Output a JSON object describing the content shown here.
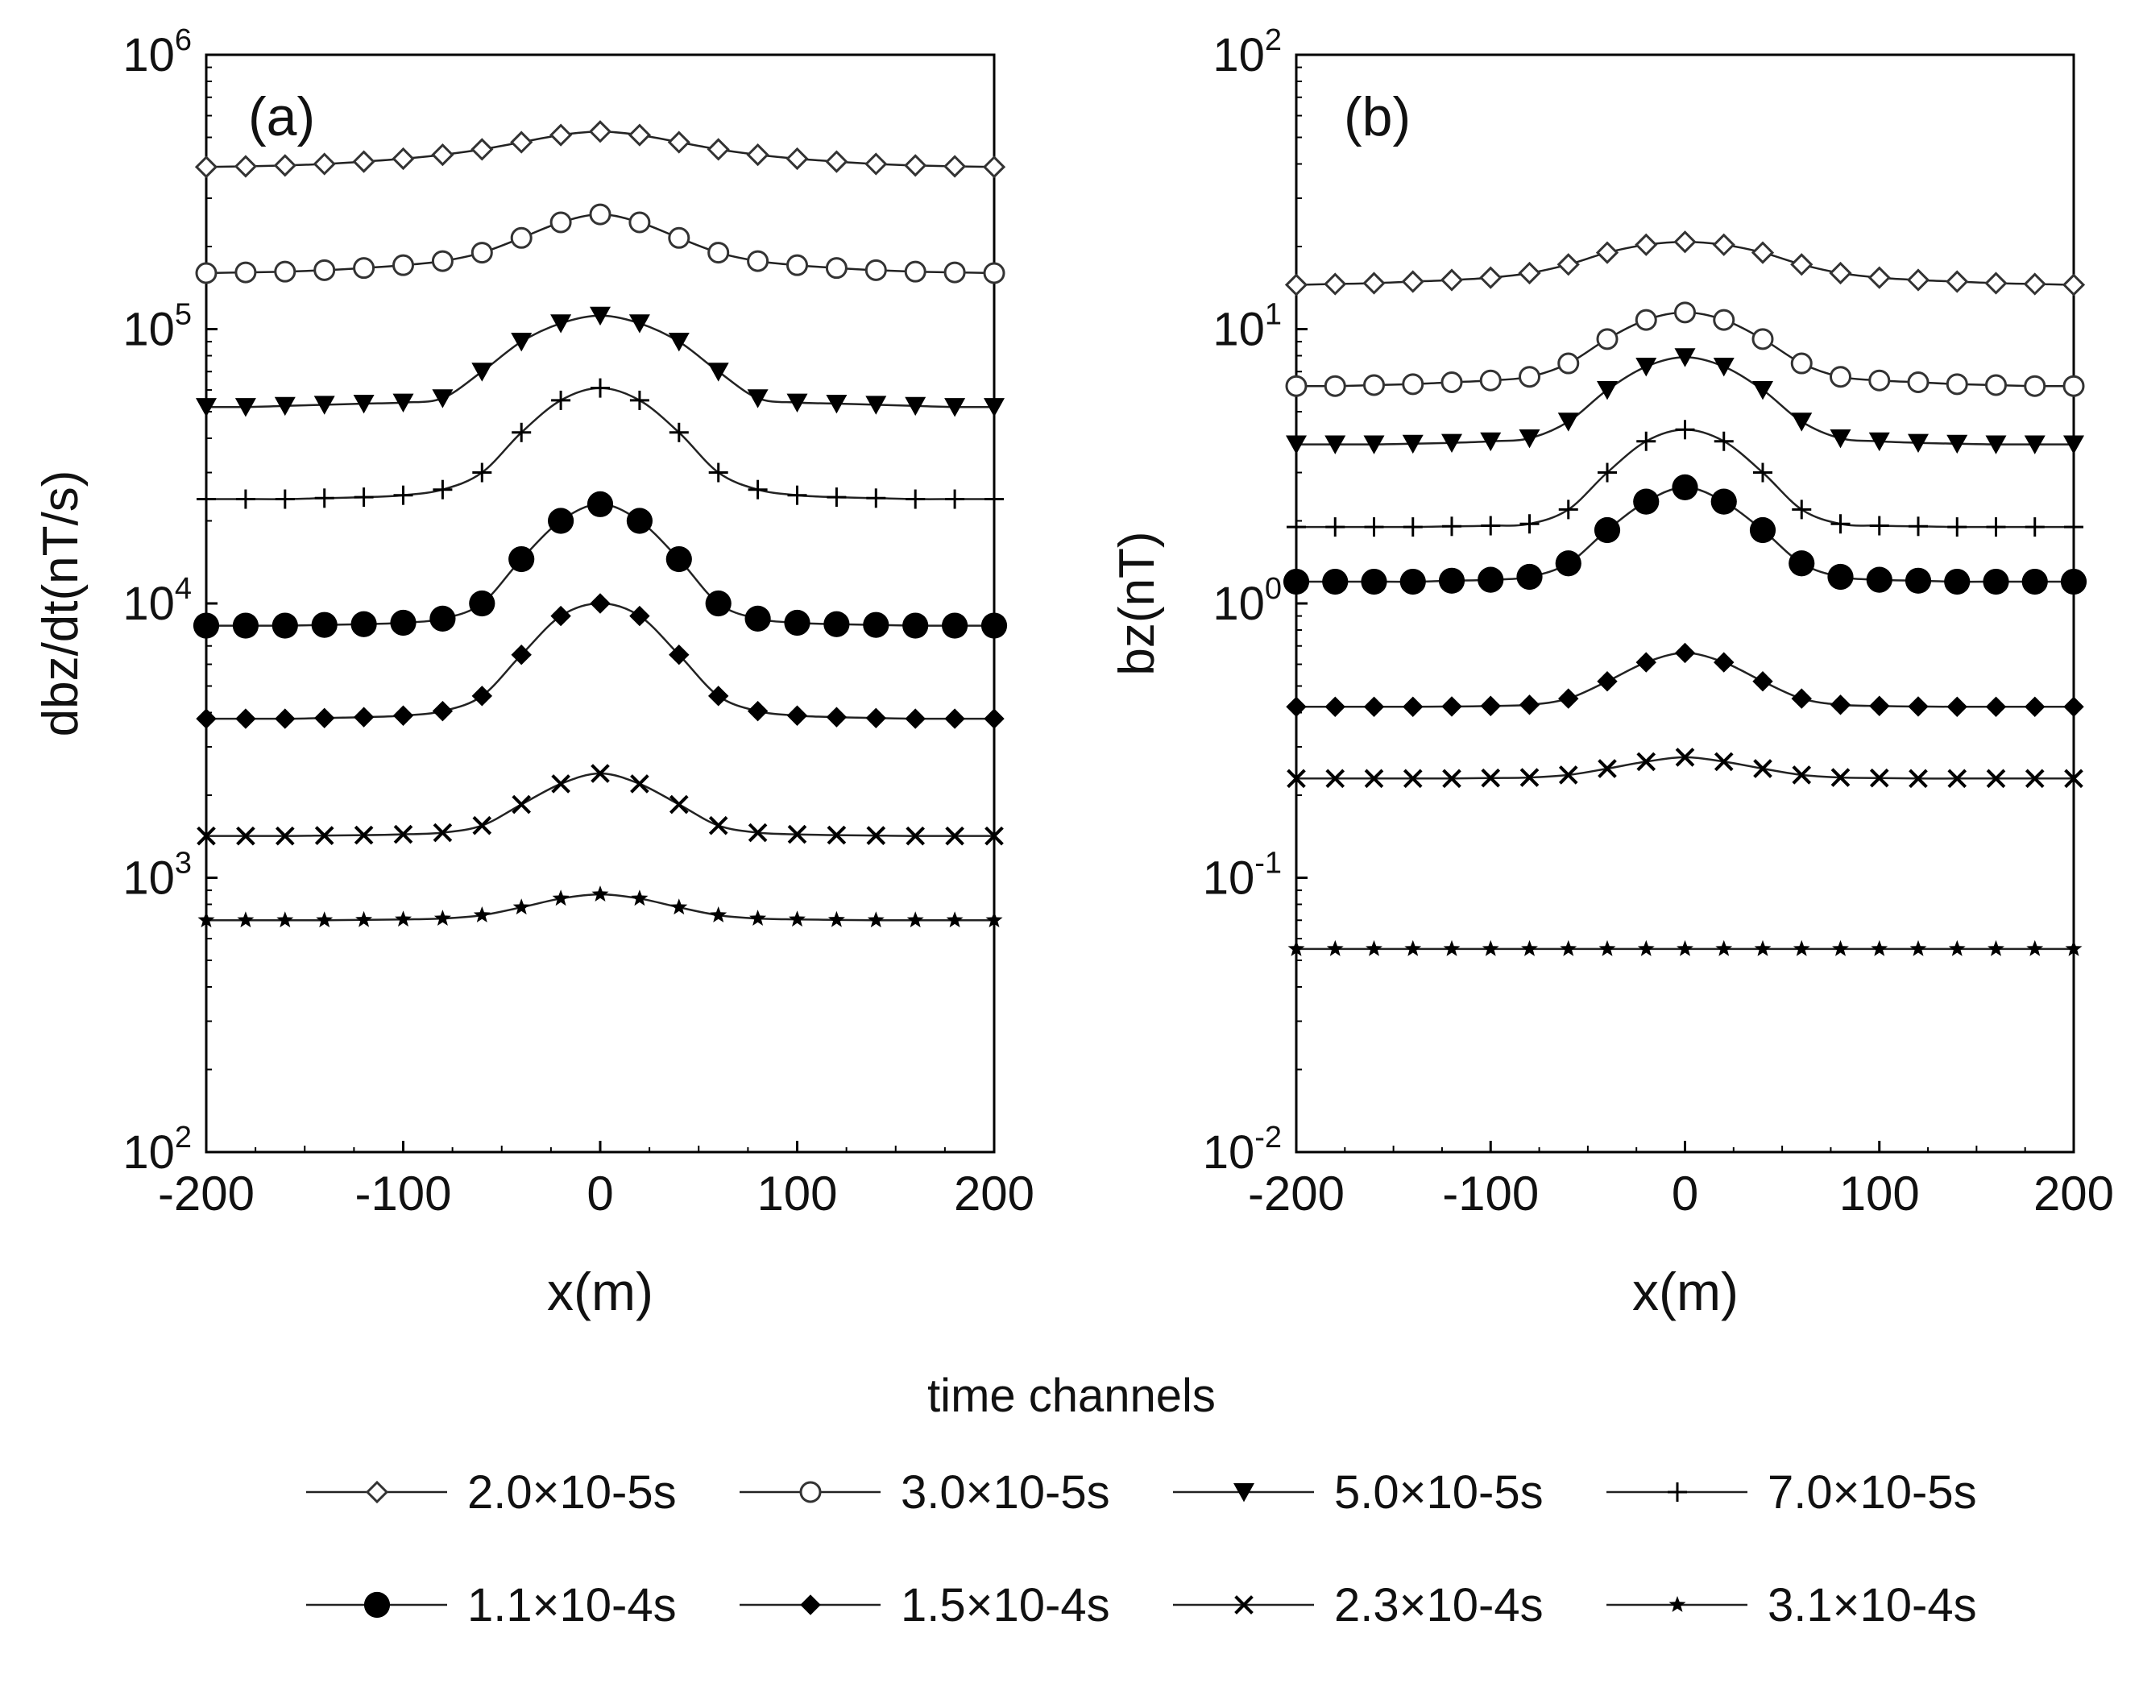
{
  "legend": {
    "title": "time channels",
    "placement": "bottom",
    "entries": [
      {
        "label": "2.0×10-5s",
        "marker": "diamond-open"
      },
      {
        "label": "3.0×10-5s",
        "marker": "circle-open"
      },
      {
        "label": "5.0×10-5s",
        "marker": "triangle-down-filled"
      },
      {
        "label": "7.0×10-5s",
        "marker": "plus"
      },
      {
        "label": "1.1×10-4s",
        "marker": "circle-filled"
      },
      {
        "label": "1.5×10-4s",
        "marker": "diamond-filled"
      },
      {
        "label": "2.3×10-4s",
        "marker": "cross"
      },
      {
        "label": "3.1×10-4s",
        "marker": "star"
      }
    ]
  },
  "chart_data": [
    {
      "type": "line",
      "panel_label": "(a)",
      "xlabel": "x(m)",
      "ylabel": "dbz/dt(nT/s)",
      "yscale": "log",
      "xlim": [
        -200,
        200
      ],
      "ylim": [
        100,
        1000000
      ],
      "xticks": [
        -200,
        -100,
        0,
        100,
        200
      ],
      "yticks": [
        {
          "base": "10",
          "exp": "2",
          "value": 100
        },
        {
          "base": "10",
          "exp": "3",
          "value": 1000
        },
        {
          "base": "10",
          "exp": "4",
          "value": 10000
        },
        {
          "base": "10",
          "exp": "5",
          "value": 100000
        },
        {
          "base": "10",
          "exp": "6",
          "value": 1000000
        }
      ],
      "grid": false,
      "x": [
        -200,
        -180,
        -160,
        -140,
        -120,
        -100,
        -80,
        -60,
        -40,
        -20,
        0,
        20,
        40,
        60,
        80,
        100,
        120,
        140,
        160,
        180,
        200
      ],
      "series": [
        {
          "name": "2.0×10-5s",
          "marker": "diamond-open",
          "values": [
            390000,
            392000,
            395000,
            400000,
            408000,
            418000,
            432000,
            452000,
            480000,
            510000,
            525000,
            510000,
            480000,
            452000,
            432000,
            418000,
            408000,
            400000,
            395000,
            392000,
            390000
          ]
        },
        {
          "name": "3.0×10-5s",
          "marker": "circle-open",
          "values": [
            160000,
            161000,
            162000,
            164000,
            167000,
            171000,
            177000,
            190000,
            215000,
            245000,
            262000,
            245000,
            215000,
            190000,
            177000,
            171000,
            167000,
            164000,
            162000,
            161000,
            160000
          ]
        },
        {
          "name": "5.0×10-5s",
          "marker": "triangle-down-filled",
          "values": [
            52000,
            52000,
            52500,
            53000,
            53500,
            54000,
            56000,
            70000,
            90000,
            105000,
            112000,
            105000,
            90000,
            70000,
            56000,
            54000,
            53500,
            53000,
            52500,
            52000,
            52000
          ]
        },
        {
          "name": "7.0×10-5s",
          "marker": "plus",
          "values": [
            24000,
            24000,
            24000,
            24200,
            24400,
            24800,
            26000,
            30000,
            42000,
            55000,
            61000,
            55000,
            42000,
            30000,
            26000,
            24800,
            24400,
            24200,
            24000,
            24000,
            24000
          ]
        },
        {
          "name": "1.1×10-4s",
          "marker": "circle-filled",
          "values": [
            8300,
            8300,
            8300,
            8350,
            8400,
            8500,
            8800,
            10000,
            14500,
            20000,
            23000,
            20000,
            14500,
            10000,
            8800,
            8500,
            8400,
            8350,
            8300,
            8300,
            8300
          ]
        },
        {
          "name": "1.5×10-4s",
          "marker": "diamond-filled",
          "values": [
            3800,
            3800,
            3800,
            3820,
            3850,
            3900,
            4050,
            4600,
            6500,
            9000,
            10000,
            9000,
            6500,
            4600,
            4050,
            3900,
            3850,
            3820,
            3800,
            3800,
            3800
          ]
        },
        {
          "name": "2.3×10-4s",
          "marker": "cross",
          "values": [
            1420,
            1420,
            1420,
            1425,
            1430,
            1440,
            1460,
            1550,
            1850,
            2200,
            2400,
            2200,
            1850,
            1550,
            1460,
            1440,
            1430,
            1425,
            1420,
            1420,
            1420
          ]
        },
        {
          "name": "3.1×10-4s",
          "marker": "star",
          "values": [
            700,
            700,
            700,
            700,
            702,
            705,
            710,
            730,
            780,
            840,
            870,
            840,
            780,
            730,
            710,
            705,
            702,
            700,
            700,
            700,
            700
          ]
        }
      ]
    },
    {
      "type": "line",
      "panel_label": "(b)",
      "xlabel": "x(m)",
      "ylabel": "bz(nT)",
      "yscale": "log",
      "xlim": [
        -200,
        200
      ],
      "ylim": [
        0.01,
        100
      ],
      "xticks": [
        -200,
        -100,
        0,
        100,
        200
      ],
      "yticks": [
        {
          "base": "10",
          "exp": "-2",
          "value": 0.01
        },
        {
          "base": "10",
          "exp": "-1",
          "value": 0.1
        },
        {
          "base": "10",
          "exp": "0",
          "value": 1
        },
        {
          "base": "10",
          "exp": "1",
          "value": 10
        },
        {
          "base": "10",
          "exp": "2",
          "value": 100
        }
      ],
      "grid": false,
      "x": [
        -200,
        -180,
        -160,
        -140,
        -120,
        -100,
        -80,
        -60,
        -40,
        -20,
        0,
        20,
        40,
        60,
        80,
        100,
        120,
        140,
        160,
        180,
        200
      ],
      "series": [
        {
          "name": "2.0×10-5s",
          "marker": "diamond-open",
          "values": [
            14.5,
            14.6,
            14.7,
            14.9,
            15.1,
            15.4,
            16.0,
            17.2,
            19.0,
            20.3,
            20.8,
            20.3,
            19.0,
            17.2,
            16.0,
            15.4,
            15.1,
            14.9,
            14.7,
            14.6,
            14.5
          ]
        },
        {
          "name": "3.0×10-5s",
          "marker": "circle-open",
          "values": [
            6.2,
            6.2,
            6.25,
            6.3,
            6.4,
            6.5,
            6.7,
            7.5,
            9.2,
            10.8,
            11.5,
            10.8,
            9.2,
            7.5,
            6.7,
            6.5,
            6.4,
            6.3,
            6.25,
            6.2,
            6.2
          ]
        },
        {
          "name": "5.0×10-5s",
          "marker": "triangle-down-filled",
          "values": [
            3.8,
            3.8,
            3.8,
            3.82,
            3.85,
            3.9,
            4.0,
            4.6,
            6.0,
            7.3,
            7.9,
            7.3,
            6.0,
            4.6,
            4.0,
            3.9,
            3.85,
            3.82,
            3.8,
            3.8,
            3.8
          ]
        },
        {
          "name": "7.0×10-5s",
          "marker": "plus",
          "values": [
            1.9,
            1.9,
            1.9,
            1.9,
            1.91,
            1.92,
            1.95,
            2.2,
            3.0,
            3.9,
            4.3,
            3.9,
            3.0,
            2.2,
            1.95,
            1.92,
            1.91,
            1.9,
            1.9,
            1.9,
            1.9
          ]
        },
        {
          "name": "1.1×10-4s",
          "marker": "circle-filled",
          "values": [
            1.2,
            1.2,
            1.2,
            1.2,
            1.21,
            1.22,
            1.25,
            1.4,
            1.85,
            2.35,
            2.65,
            2.35,
            1.85,
            1.4,
            1.25,
            1.22,
            1.21,
            1.2,
            1.2,
            1.2,
            1.2
          ]
        },
        {
          "name": "1.5×10-4s",
          "marker": "diamond-filled",
          "values": [
            0.42,
            0.42,
            0.42,
            0.42,
            0.421,
            0.423,
            0.427,
            0.45,
            0.52,
            0.61,
            0.66,
            0.61,
            0.52,
            0.45,
            0.427,
            0.423,
            0.421,
            0.42,
            0.42,
            0.42,
            0.42
          ]
        },
        {
          "name": "2.3×10-4s",
          "marker": "cross",
          "values": [
            0.23,
            0.23,
            0.23,
            0.23,
            0.23,
            0.231,
            0.232,
            0.237,
            0.25,
            0.265,
            0.275,
            0.265,
            0.25,
            0.237,
            0.232,
            0.231,
            0.23,
            0.23,
            0.23,
            0.23,
            0.23
          ]
        },
        {
          "name": "3.1×10-4s",
          "marker": "star",
          "values": [
            0.055,
            0.055,
            0.055,
            0.055,
            0.055,
            0.055,
            0.055,
            0.055,
            0.055,
            0.055,
            0.055,
            0.055,
            0.055,
            0.055,
            0.055,
            0.055,
            0.055,
            0.055,
            0.055,
            0.055,
            0.055
          ]
        }
      ]
    }
  ]
}
